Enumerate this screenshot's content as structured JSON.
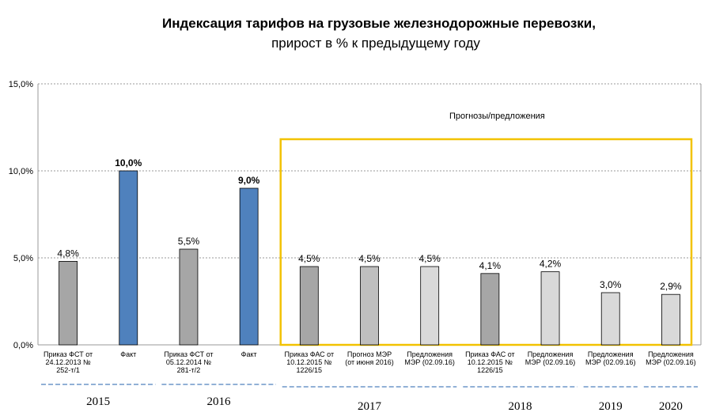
{
  "header": {
    "title": "Индексация тарифов на грузовые железнодорожные перевозки,",
    "subtitle": "прирост в % к предыдущему году"
  },
  "chart_data": {
    "type": "bar",
    "title": "Индексация тарифов на грузовые железнодорожные перевозки,",
    "subtitle": "прирост в % к предыдущему году",
    "ylim": [
      0,
      15
    ],
    "yticks": [
      "0,0%",
      "5,0%",
      "10,0%",
      "15,0%"
    ],
    "ytick_values": [
      0,
      5,
      10,
      15
    ],
    "grid": true,
    "bars": [
      {
        "label": "Приказ ФСТ от 24.12.2013 № 252-т/1",
        "lines": [
          "Приказ ФСТ от",
          "24.12.2013 №",
          "252-т/1"
        ],
        "value": 4.8,
        "value_label": "4,8%",
        "bold": false,
        "color": "#a6a6a6"
      },
      {
        "label": "Факт",
        "lines": [
          "Факт"
        ],
        "value": 10.0,
        "value_label": "10,0%",
        "bold": true,
        "color": "#4f81bd"
      },
      {
        "label": "Приказ ФСТ от 05.12.2014 № 281-т/2",
        "lines": [
          "Приказ ФСТ от",
          "05.12.2014 №",
          "281-т/2"
        ],
        "value": 5.5,
        "value_label": "5,5%",
        "bold": false,
        "color": "#a6a6a6"
      },
      {
        "label": "Факт",
        "lines": [
          "Факт"
        ],
        "value": 9.0,
        "value_label": "9,0%",
        "bold": true,
        "color": "#4f81bd"
      },
      {
        "label": "Приказ ФАС от 10.12.2015 № 1226/15",
        "lines": [
          "Приказ ФАС от",
          "10.12.2015 №",
          "1226/15"
        ],
        "value": 4.5,
        "value_label": "4,5%",
        "bold": false,
        "color": "#a6a6a6"
      },
      {
        "label": "Прогноз МЭР (от июня 2016)",
        "lines": [
          "Прогноз МЭР",
          "(от июня 2016)"
        ],
        "value": 4.5,
        "value_label": "4,5%",
        "bold": false,
        "color": "#bfbfbf"
      },
      {
        "label": "Предложения МЭР (02.09.16)",
        "lines": [
          "Предложения",
          "МЭР (02.09.16)"
        ],
        "value": 4.5,
        "value_label": "4,5%",
        "bold": false,
        "color": "#d9d9d9"
      },
      {
        "label": "Приказ ФАС от 10.12.2015 № 1226/15",
        "lines": [
          "Приказ ФАС от",
          "10.12.2015 №",
          "1226/15"
        ],
        "value": 4.1,
        "value_label": "4,1%",
        "bold": false,
        "color": "#a6a6a6"
      },
      {
        "label": "Предложения МЭР (02.09.16)",
        "lines": [
          "Предложения",
          "МЭР (02.09.16)"
        ],
        "value": 4.2,
        "value_label": "4,2%",
        "bold": false,
        "color": "#d9d9d9"
      },
      {
        "label": "Предложения МЭР (02.09.16)",
        "lines": [
          "Предложения",
          "МЭР (02.09.16)"
        ],
        "value": 3.0,
        "value_label": "3,0%",
        "bold": false,
        "color": "#d9d9d9"
      },
      {
        "label": "Предложения МЭР (02.09.16)",
        "lines": [
          "Предложения",
          "МЭР (02.09.16)"
        ],
        "value": 2.9,
        "value_label": "2,9%",
        "bold": false,
        "color": "#d9d9d9"
      }
    ],
    "year_groups": [
      {
        "year": "2015",
        "bars": [
          0,
          1
        ]
      },
      {
        "year": "2016",
        "bars": [
          2,
          3
        ]
      },
      {
        "year": "2017",
        "bars": [
          4,
          5,
          6
        ]
      },
      {
        "year": "2018",
        "bars": [
          7,
          8
        ]
      },
      {
        "year": "2019",
        "bars": [
          9
        ]
      },
      {
        "year": "2020",
        "bars": [
          10
        ]
      }
    ],
    "forecast_box": {
      "label": "Прогнозы/предложения",
      "color": "#f2c200",
      "from_bar": 4,
      "to_bar": 10
    }
  }
}
